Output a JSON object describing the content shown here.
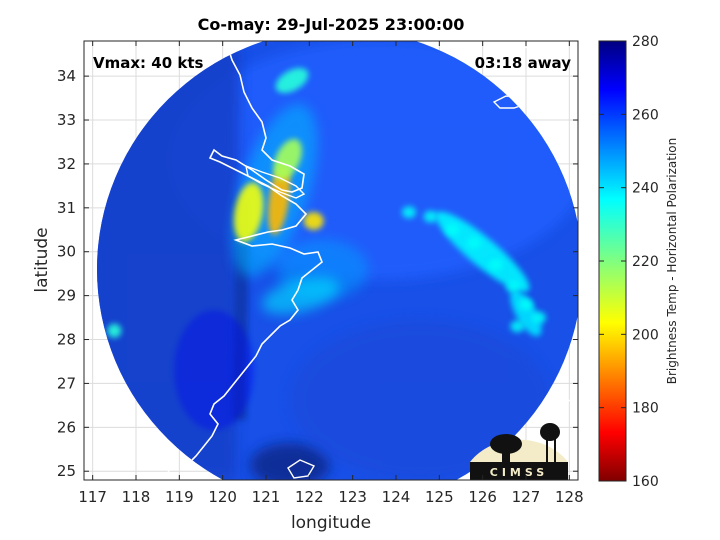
{
  "chart_data": {
    "type": "heatmap",
    "title": "Co-may: 29-Jul-2025 23:00:00",
    "xlabel": "longitude",
    "ylabel": "latitude",
    "xlim": [
      116.8,
      128.2
    ],
    "ylim": [
      24.8,
      34.8
    ],
    "x_ticks": [
      117,
      118,
      119,
      120,
      121,
      122,
      123,
      124,
      125,
      126,
      127,
      128
    ],
    "y_ticks": [
      25,
      26,
      27,
      28,
      29,
      30,
      31,
      32,
      33,
      34
    ],
    "grid": true,
    "annotations": {
      "vmax": "Vmax: 40 kts",
      "time_away": "03:18 away"
    },
    "colorbar": {
      "label": "Brightness Temp - Horizontal Polarization",
      "range": [
        160,
        280
      ],
      "ticks": [
        160,
        180,
        200,
        220,
        240,
        260,
        280
      ],
      "colormap": "jet"
    },
    "swath": {
      "center": [
        122.7,
        29.6
      ],
      "radius_deg_lon": 5.6,
      "background_value": 262
    },
    "features": [
      {
        "name": "rainband-west",
        "lon": 120.6,
        "lat": 30.9,
        "value": 205
      },
      {
        "name": "rainband-core",
        "lon": 121.3,
        "lat": 31.2,
        "value": 195
      },
      {
        "name": "rainband-north",
        "lon": 121.5,
        "lat": 32.1,
        "value": 215
      },
      {
        "name": "rainband-top",
        "lon": 121.6,
        "lat": 33.9,
        "value": 232
      },
      {
        "name": "inner-core",
        "lon": 122.1,
        "lat": 30.7,
        "value": 200
      },
      {
        "name": "spiral-band-east",
        "lon": 126.0,
        "lat": 30.0,
        "value": 238
      },
      {
        "name": "spiral-band-south",
        "lon": 127.0,
        "lat": 28.6,
        "value": 240
      },
      {
        "name": "isolated-cell",
        "lon": 117.5,
        "lat": 28.2,
        "value": 232
      },
      {
        "name": "land-region",
        "lon": 119.8,
        "lat": 27.3,
        "value": 268
      }
    ]
  },
  "logo": {
    "text": "CIMSS"
  }
}
